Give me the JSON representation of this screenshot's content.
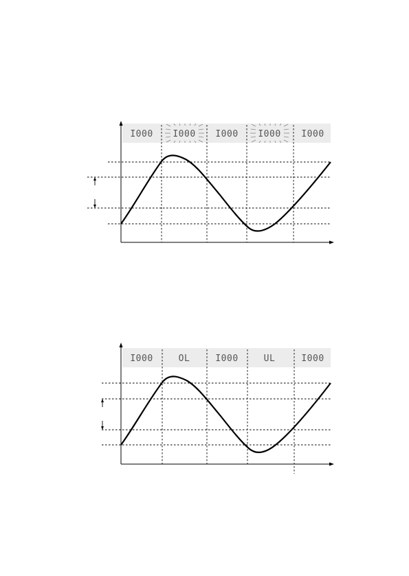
{
  "diagrams": [
    {
      "id": "top",
      "segments": [
        {
          "text": "I000",
          "blinking": false
        },
        {
          "text": "I000",
          "blinking": true
        },
        {
          "text": "I000",
          "blinking": false
        },
        {
          "text": "I000",
          "blinking": true
        },
        {
          "text": "I000",
          "blinking": false
        }
      ]
    },
    {
      "id": "bottom",
      "segments": [
        {
          "text": "I000",
          "blinking": false
        },
        {
          "text": "OL",
          "blinking": false
        },
        {
          "text": "I000",
          "blinking": false
        },
        {
          "text": "UL",
          "blinking": false
        },
        {
          "text": "I000",
          "blinking": false
        }
      ]
    }
  ],
  "colors": {
    "band": "#ececec",
    "lcd_text": "#555555",
    "line": "#000000"
  }
}
